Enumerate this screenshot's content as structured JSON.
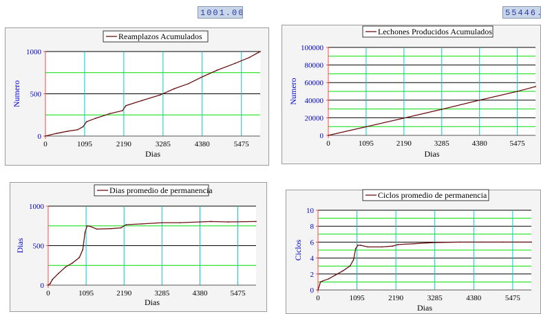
{
  "readouts": {
    "left": "1001.00",
    "right": "55446.0"
  },
  "colors": {
    "line": "#6b0f0f",
    "grid_green": "#00dd00",
    "grid_cyan": "#00cccc",
    "grid_black": "#000000",
    "axis_red": "#ff4444",
    "tick_blue": "#0000cc"
  },
  "chart_data": [
    {
      "type": "line",
      "title": "Reamplazos Acumulados",
      "xlabel": "Dias",
      "ylabel": "Numero",
      "xlim": [
        0,
        6000
      ],
      "ylim": [
        0,
        1000
      ],
      "xticks": [
        0,
        1095,
        2190,
        3285,
        4380,
        5475
      ],
      "yticks": [
        0,
        500,
        1000
      ],
      "series": [
        {
          "x": [
            0,
            300,
            600,
            900,
            1050,
            1150,
            1400,
            1800,
            2150,
            2250,
            2700,
            3200,
            3600,
            4000,
            4380,
            4800,
            5300,
            5700,
            6000
          ],
          "values": [
            0,
            30,
            55,
            75,
            110,
            170,
            210,
            265,
            300,
            360,
            420,
            485,
            560,
            620,
            700,
            780,
            860,
            930,
            1000
          ]
        }
      ]
    },
    {
      "type": "line",
      "title": "Lechones Producidos Acumulados",
      "xlabel": "Dias",
      "ylabel": "Numero",
      "xlim": [
        0,
        6000
      ],
      "ylim": [
        0,
        100000
      ],
      "xticks": [
        0,
        1095,
        2190,
        3285,
        4380,
        5475
      ],
      "yticks": [
        0,
        20000,
        40000,
        60000,
        80000,
        100000
      ],
      "series": [
        {
          "x": [
            0,
            1095,
            2190,
            3285,
            4380,
            5475,
            6000
          ],
          "values": [
            0,
            9800,
            19600,
            29600,
            40000,
            50000,
            55446
          ]
        }
      ]
    },
    {
      "type": "line",
      "title": "Dias promedio de permanencia",
      "xlabel": "Dias",
      "ylabel": "Dias",
      "xlim": [
        0,
        6000
      ],
      "ylim": [
        0,
        1000
      ],
      "xticks": [
        0,
        1095,
        2190,
        3285,
        4380,
        5475
      ],
      "yticks": [
        0,
        500,
        1000
      ],
      "series": [
        {
          "x": [
            0,
            60,
            120,
            300,
            500,
            700,
            900,
            1000,
            1060,
            1120,
            1200,
            1400,
            1800,
            2100,
            2250,
            2700,
            3285,
            3800,
            4380,
            4700,
            5200,
            6000
          ],
          "values": [
            0,
            20,
            70,
            150,
            230,
            280,
            350,
            450,
            660,
            750,
            745,
            710,
            715,
            725,
            765,
            775,
            790,
            790,
            800,
            805,
            800,
            805
          ]
        }
      ]
    },
    {
      "type": "line",
      "title": "Ciclos  promedio de permanencia",
      "xlabel": "Dias",
      "ylabel": "Ciclos",
      "xlim": [
        0,
        6000
      ],
      "ylim": [
        0,
        10
      ],
      "xticks": [
        0,
        1095,
        2190,
        3285,
        4380,
        5475
      ],
      "yticks": [
        0,
        2,
        4,
        6,
        8,
        10
      ],
      "series": [
        {
          "x": [
            0,
            70,
            120,
            300,
            500,
            700,
            900,
            1000,
            1060,
            1120,
            1200,
            1400,
            1800,
            2100,
            2250,
            2700,
            3285,
            4000,
            4600,
            5200,
            6000
          ],
          "values": [
            0,
            1.0,
            1.1,
            1.4,
            1.9,
            2.4,
            3.0,
            3.8,
            5.2,
            5.6,
            5.6,
            5.4,
            5.4,
            5.5,
            5.7,
            5.8,
            5.95,
            6.0,
            6.0,
            6.0,
            6.0
          ]
        }
      ]
    }
  ]
}
